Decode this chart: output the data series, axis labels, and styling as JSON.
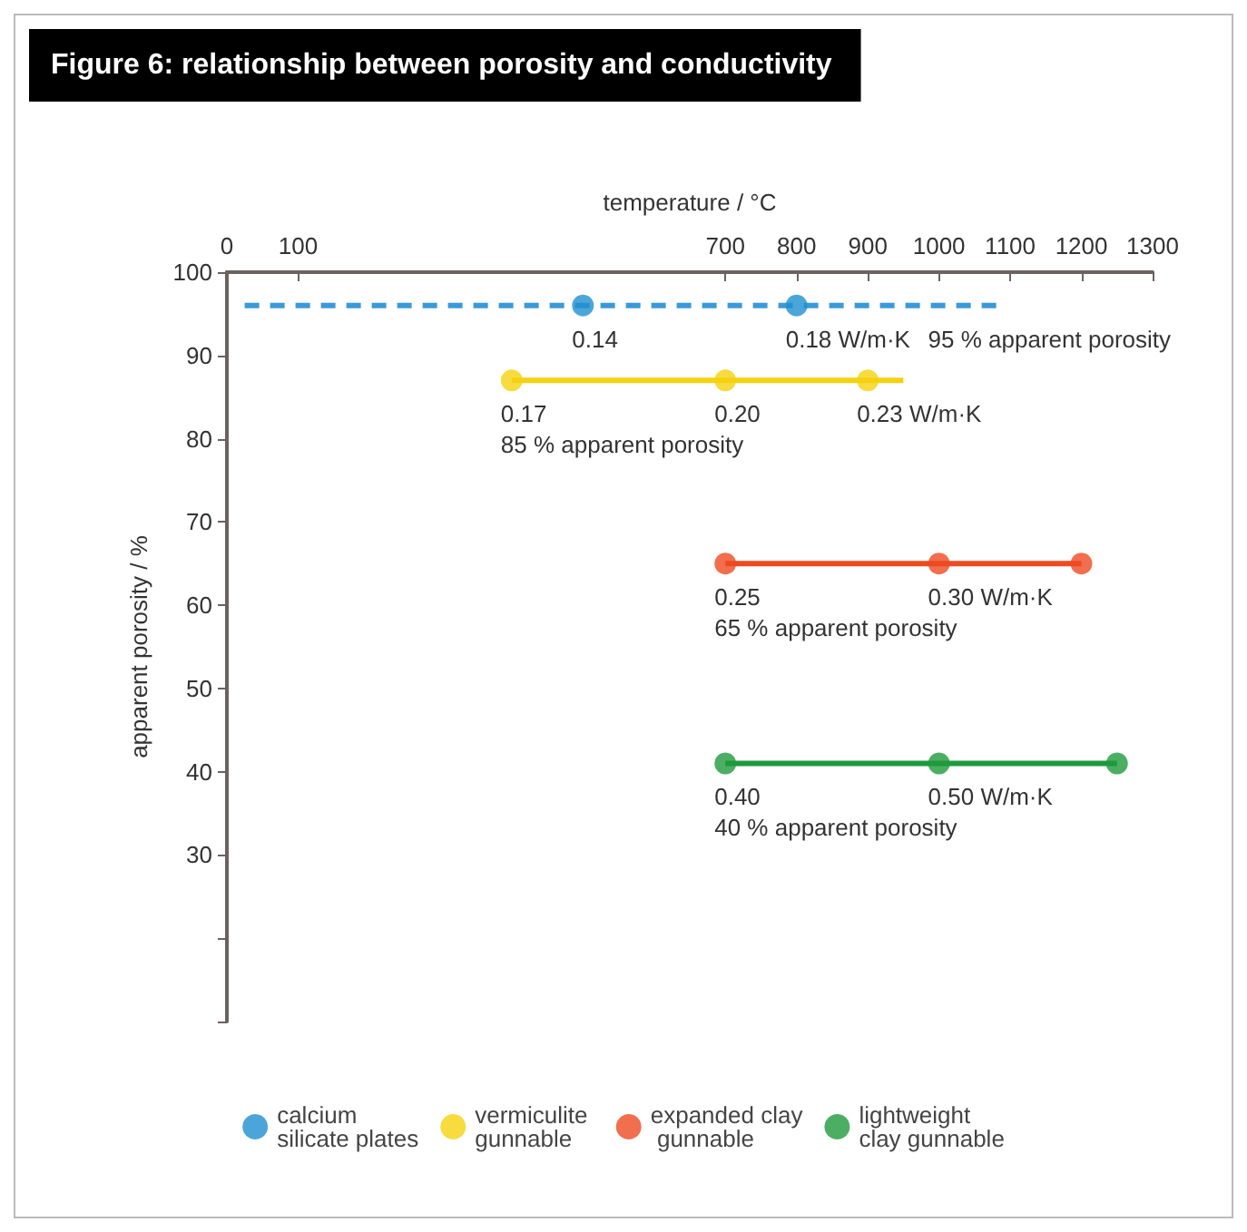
{
  "chart_data": {
    "type": "line",
    "title": "Figure 6: relationship between porosity and conductivity",
    "xlabel": "temperature / °C",
    "ylabel": "apparent porosity / %",
    "xlim": [
      0,
      1300
    ],
    "xticks": [
      0,
      100,
      700,
      800,
      900,
      1000,
      1100,
      1200,
      1300
    ],
    "ylim": [
      10,
      100
    ],
    "yticks": [
      {
        "value": 10,
        "label": null
      },
      {
        "value": 20,
        "label": null
      },
      30,
      40,
      50,
      60,
      70,
      80,
      90,
      100
    ],
    "grid": false,
    "legend": "bottom",
    "series": [
      {
        "color": "#3a9ad9",
        "x": [
          25,
          1090
        ],
        "values": [
          96,
          96
        ],
        "line_style": "dashed",
        "marker": "none"
      },
      {
        "type": "scatter",
        "name": "calcium silicate plates",
        "color": "#1f8fd0",
        "x": [
          500,
          800
        ],
        "values": [
          96,
          96
        ],
        "marker": "circle"
      },
      {
        "color": "#f5d20f",
        "x": [
          400,
          950
        ],
        "values": [
          87,
          87
        ],
        "line_style": "solid",
        "marker": "none"
      },
      {
        "type": "scatter",
        "name": "vermiculite gunnable",
        "color": "#f5d20f",
        "x": [
          400,
          700,
          900
        ],
        "values": [
          87,
          87,
          87
        ],
        "marker": "circle"
      },
      {
        "color": "#ee4a22",
        "x": [
          700,
          1200
        ],
        "values": [
          65,
          65
        ],
        "line_style": "solid",
        "marker": "none"
      },
      {
        "type": "scatter",
        "name": "expanded clay gunnable",
        "color": "#ee4a22",
        "x": [
          700,
          1000,
          1200
        ],
        "values": [
          65,
          65,
          65
        ],
        "marker": "circle"
      },
      {
        "color": "#1e9a3c",
        "x": [
          700,
          1250
        ],
        "values": [
          41,
          41
        ],
        "line_style": "solid",
        "marker": "none"
      },
      {
        "type": "scatter",
        "name": "lightweight clay gunnable",
        "color": "#1e9a3c",
        "x": [
          700,
          1000,
          1250
        ],
        "values": [
          41,
          41,
          41
        ],
        "marker": "circle"
      }
    ],
    "annotations": [
      {
        "text": "0.14",
        "x": 500,
        "y": 96
      },
      {
        "text": "0.18 W/m·K",
        "x": 800,
        "y": 96
      },
      {
        "text": "95 % apparent porosity",
        "x": 1000,
        "y": 96
      },
      {
        "text": "0.17",
        "x": 400,
        "y": 87
      },
      {
        "text": "85 % apparent porosity",
        "x": 400,
        "y": 87
      },
      {
        "text": "0.20",
        "x": 700,
        "y": 87
      },
      {
        "text": "0.23 W/m·K",
        "x": 900,
        "y": 87
      },
      {
        "text": "0.25",
        "x": 700,
        "y": 65
      },
      {
        "text": "65 % apparent porosity",
        "x": 700,
        "y": 65
      },
      {
        "text": "0.30 W/m·K",
        "x": 1000,
        "y": 65
      },
      {
        "text": "0.40",
        "x": 700,
        "y": 41
      },
      {
        "text": "40 % apparent porosity",
        "x": 700,
        "y": 41
      },
      {
        "text": "0.50 W/m·K",
        "x": 1000,
        "y": 41
      }
    ]
  }
}
